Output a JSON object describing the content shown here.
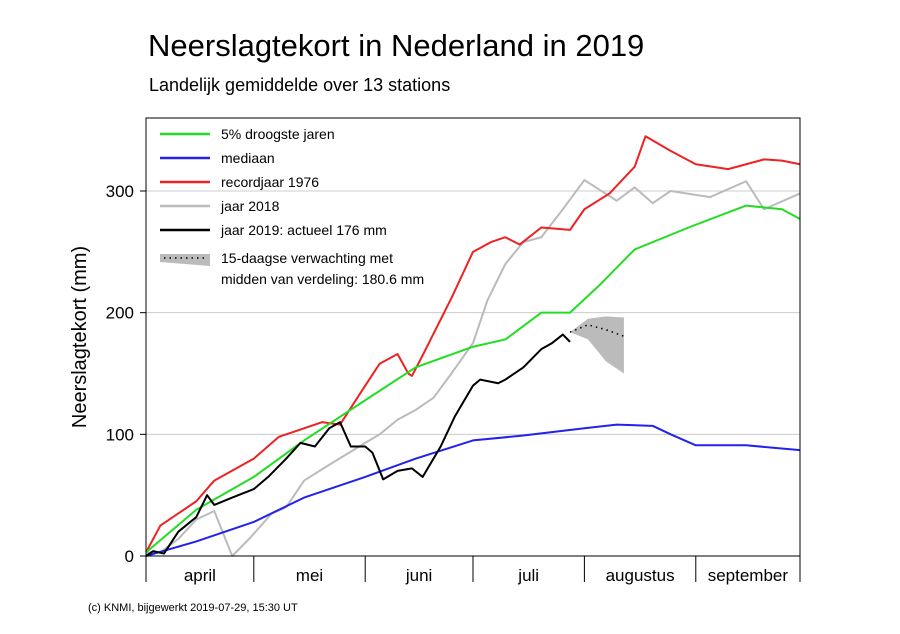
{
  "title": "Neerslagtekort in Nederland in 2019",
  "subtitle": "Landelijk gemiddelde over 13 stations",
  "credit": "(c) KNMI, bijgewerkt 2019-07-29, 15:30 UT",
  "chart_data": {
    "type": "line",
    "title": "Neerslagtekort in Nederland in 2019",
    "subtitle": "Landelijk gemiddelde over 13 stations",
    "xlabel": "",
    "ylabel": "Neerslagtekort (mm)",
    "x_unit": "date",
    "xlim": [
      "2019-04-01",
      "2019-09-30"
    ],
    "ylim": [
      0,
      360
    ],
    "yticks": [
      0,
      100,
      200,
      300
    ],
    "month_labels": [
      "april",
      "mei",
      "juni",
      "juli",
      "augustus",
      "september"
    ],
    "grid": "horizontal",
    "legend_position": "top-left",
    "legend": {
      "entries": [
        "5% droogste jaren",
        "mediaan",
        "recordjaar 1976",
        "jaar 2018",
        "jaar 2019: actueel 176 mm"
      ],
      "forecast_line1": "15-daagse verwachting met",
      "forecast_line2": "midden van verdeling: 180.6 mm"
    },
    "series": [
      {
        "name": "5% droogste jaren",
        "color": "#22dd22",
        "x": [
          "2019-04-01",
          "2019-04-15",
          "2019-05-01",
          "2019-05-15",
          "2019-06-01",
          "2019-06-15",
          "2019-07-01",
          "2019-07-10",
          "2019-07-20",
          "2019-07-28",
          "2019-08-05",
          "2019-08-15",
          "2019-08-30",
          "2019-09-15",
          "2019-09-25",
          "2019-09-30"
        ],
        "y": [
          3,
          38,
          65,
          95,
          128,
          155,
          172,
          178,
          200,
          200,
          222,
          252,
          270,
          288,
          285,
          277
        ]
      },
      {
        "name": "mediaan",
        "color": "#2222ee",
        "x": [
          "2019-04-01",
          "2019-04-15",
          "2019-05-01",
          "2019-05-15",
          "2019-06-01",
          "2019-06-15",
          "2019-07-01",
          "2019-07-15",
          "2019-08-01",
          "2019-08-10",
          "2019-08-20",
          "2019-08-25",
          "2019-09-01",
          "2019-09-15",
          "2019-09-30"
        ],
        "y": [
          0,
          12,
          28,
          48,
          65,
          80,
          95,
          99,
          105,
          108,
          107,
          100,
          91,
          91,
          87
        ]
      },
      {
        "name": "recordjaar 1976",
        "color": "#ee2222",
        "x": [
          "2019-04-01",
          "2019-04-05",
          "2019-04-15",
          "2019-04-20",
          "2019-05-01",
          "2019-05-08",
          "2019-05-12",
          "2019-05-20",
          "2019-05-25",
          "2019-06-01",
          "2019-06-05",
          "2019-06-10",
          "2019-06-13",
          "2019-06-14",
          "2019-06-17",
          "2019-06-25",
          "2019-07-01",
          "2019-07-06",
          "2019-07-10",
          "2019-07-14",
          "2019-07-20",
          "2019-07-28",
          "2019-08-01",
          "2019-08-08",
          "2019-08-15",
          "2019-08-18",
          "2019-08-25",
          "2019-09-01",
          "2019-09-10",
          "2019-09-20",
          "2019-09-25",
          "2019-09-30"
        ],
        "y": [
          3,
          25,
          45,
          62,
          80,
          98,
          102,
          110,
          108,
          140,
          158,
          166,
          150,
          148,
          165,
          212,
          250,
          258,
          262,
          256,
          270,
          268,
          285,
          298,
          320,
          345,
          333,
          322,
          318,
          326,
          325,
          322
        ]
      },
      {
        "name": "jaar 2018",
        "color": "#bbbbbb",
        "x": [
          "2019-04-01",
          "2019-04-05",
          "2019-04-10",
          "2019-04-15",
          "2019-04-20",
          "2019-04-25",
          "2019-04-30",
          "2019-05-06",
          "2019-05-10",
          "2019-05-15",
          "2019-05-22",
          "2019-06-01",
          "2019-06-05",
          "2019-06-10",
          "2019-06-15",
          "2019-06-20",
          "2019-06-25",
          "2019-07-01",
          "2019-07-05",
          "2019-07-10",
          "2019-07-15",
          "2019-07-20",
          "2019-07-26",
          "2019-08-01",
          "2019-08-10",
          "2019-08-15",
          "2019-08-20",
          "2019-08-25",
          "2019-09-05",
          "2019-09-15",
          "2019-09-20",
          "2019-09-30"
        ],
        "y": [
          3,
          3,
          14,
          30,
          37,
          0,
          15,
          35,
          40,
          62,
          75,
          93,
          100,
          112,
          120,
          130,
          150,
          175,
          210,
          240,
          258,
          262,
          285,
          309,
          292,
          303,
          290,
          300,
          295,
          308,
          285,
          298
        ]
      },
      {
        "name": "jaar 2019: actueel 176 mm",
        "color": "#000000",
        "x": [
          "2019-04-01",
          "2019-04-03",
          "2019-04-06",
          "2019-04-10",
          "2019-04-15",
          "2019-04-18",
          "2019-04-20",
          "2019-04-25",
          "2019-05-01",
          "2019-05-05",
          "2019-05-10",
          "2019-05-14",
          "2019-05-18",
          "2019-05-22",
          "2019-05-25",
          "2019-05-28",
          "2019-06-01",
          "2019-06-03",
          "2019-06-06",
          "2019-06-10",
          "2019-06-14",
          "2019-06-17",
          "2019-06-22",
          "2019-06-26",
          "2019-07-01",
          "2019-07-03",
          "2019-07-08",
          "2019-07-10",
          "2019-07-15",
          "2019-07-20",
          "2019-07-23",
          "2019-07-26",
          "2019-07-28"
        ],
        "y": [
          0,
          4,
          2,
          20,
          32,
          50,
          42,
          48,
          55,
          65,
          80,
          93,
          90,
          105,
          110,
          90,
          90,
          85,
          63,
          70,
          72,
          65,
          90,
          115,
          140,
          145,
          142,
          145,
          155,
          170,
          175,
          182,
          176
        ]
      }
    ],
    "forecast": {
      "name": "15-daagse verwachting",
      "start": "2019-07-28",
      "end": "2019-08-12",
      "median": [
        184,
        190,
        186,
        180.6
      ],
      "upper": [
        184,
        195,
        197,
        196
      ],
      "lower": [
        184,
        178,
        160,
        150
      ],
      "color": "#bbbbbb"
    }
  }
}
